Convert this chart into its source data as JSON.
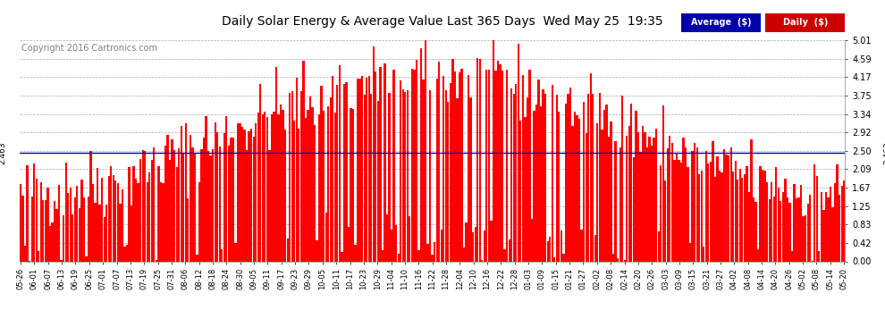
{
  "title": "Daily Solar Energy & Average Value Last 365 Days  Wed May 25  19:35",
  "copyright_text": "Copyright 2016 Cartronics.com",
  "average_value": 2.463,
  "y_ticks": [
    0.0,
    0.42,
    0.83,
    1.25,
    1.67,
    2.09,
    2.5,
    2.92,
    3.34,
    3.75,
    4.17,
    4.59,
    5.01
  ],
  "ymax": 5.01,
  "ymin": 0.0,
  "bar_color": "#FF0000",
  "avg_line_color": "#0000CC",
  "bg_color": "#FFFFFF",
  "grid_color": "#AAAAAA",
  "legend_avg_color": "#0000AA",
  "legend_daily_color": "#CC0000",
  "x_tick_labels": [
    "05-26",
    "06-01",
    "06-07",
    "06-13",
    "06-19",
    "06-25",
    "07-01",
    "07-07",
    "07-13",
    "07-19",
    "07-25",
    "07-31",
    "08-06",
    "08-12",
    "08-18",
    "08-24",
    "08-30",
    "09-05",
    "09-11",
    "09-17",
    "09-23",
    "09-29",
    "10-05",
    "10-11",
    "10-17",
    "10-23",
    "10-29",
    "11-04",
    "11-10",
    "11-16",
    "11-22",
    "11-28",
    "12-04",
    "12-10",
    "12-16",
    "12-22",
    "12-28",
    "01-03",
    "01-09",
    "01-15",
    "01-21",
    "01-27",
    "02-02",
    "02-08",
    "02-14",
    "02-20",
    "02-26",
    "03-03",
    "03-09",
    "03-15",
    "03-21",
    "03-27",
    "04-02",
    "04-08",
    "04-14",
    "04-20",
    "04-26",
    "05-02",
    "05-08",
    "05-14",
    "05-20"
  ],
  "num_bars": 365,
  "seed": 42
}
